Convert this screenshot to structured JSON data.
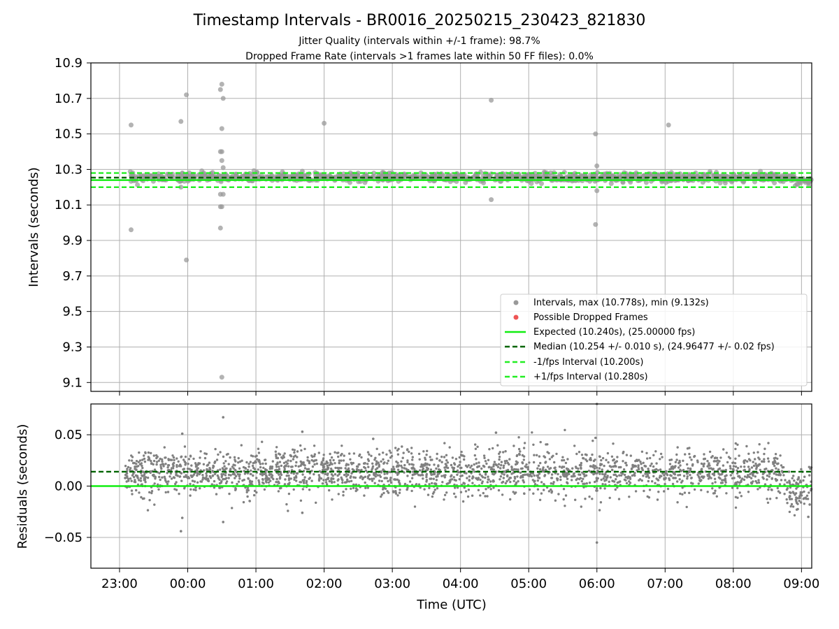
{
  "chart_data": [
    {
      "type": "scatter",
      "title": "Timestamp Intervals - BR0016_20250215_230423_821830",
      "subtitle_lines": [
        "Jitter Quality (intervals within +/-1 frame): 98.7%",
        "Dropped Frame Rate (intervals >1 frames late within 50 FF files): 0.0%"
      ],
      "xlabel": "",
      "ylabel": "Intervals (seconds)",
      "xlim_hours": [
        -0.42,
        10.15
      ],
      "ylim": [
        9.05,
        10.9
      ],
      "yticks": [
        9.1,
        9.3,
        9.5,
        9.7,
        9.9,
        10.1,
        10.3,
        10.5,
        10.7,
        10.9
      ],
      "ytick_labels": [
        "9.1",
        "9.3",
        "9.5",
        "9.7",
        "9.9",
        "10.1",
        "10.3",
        "10.5",
        "10.7",
        "10.9"
      ],
      "grid": true,
      "legend_position": "lower right",
      "legend": [
        "Intervals, max (10.778s), min (9.132s)",
        "Possible Dropped Frames",
        "Expected (10.240s), (25.00000 fps)",
        "Median (10.254 +/- 0.010 s), (24.96477 +/- 0.02 fps)",
        "-1/fps Interval (10.200s)",
        "+1/fps Interval (10.280s)"
      ],
      "lines": {
        "expected": 10.24,
        "median": 10.254,
        "minus_1_fps": 10.2,
        "plus_1_fps": 10.28
      },
      "series": [
        {
          "name": "Intervals, max (10.778s), min (9.132s)",
          "band": {
            "x_start": 0.15,
            "x_end": 10.15,
            "center": 10.255,
            "spread": 0.012,
            "count": 1200
          },
          "outliers": [
            [
              0.17,
              10.55
            ],
            [
              0.17,
              9.96
            ],
            [
              0.9,
              10.57
            ],
            [
              0.9,
              10.2
            ],
            [
              0.92,
              10.28
            ],
            [
              0.98,
              10.72
            ],
            [
              0.98,
              9.79
            ],
            [
              1.48,
              10.75
            ],
            [
              1.5,
              10.78
            ],
            [
              1.52,
              10.7
            ],
            [
              1.5,
              10.53
            ],
            [
              1.48,
              10.4
            ],
            [
              1.5,
              10.4
            ],
            [
              1.5,
              10.35
            ],
            [
              1.52,
              10.31
            ],
            [
              1.48,
              10.16
            ],
            [
              1.52,
              10.16
            ],
            [
              1.48,
              10.09
            ],
            [
              1.5,
              10.09
            ],
            [
              1.48,
              9.97
            ],
            [
              1.5,
              9.13
            ],
            [
              3.0,
              10.56
            ],
            [
              5.45,
              10.69
            ],
            [
              5.45,
              10.13
            ],
            [
              6.98,
              10.5
            ],
            [
              7.0,
              10.32
            ],
            [
              7.0,
              10.18
            ],
            [
              6.98,
              9.99
            ],
            [
              8.05,
              10.55
            ],
            [
              2.68,
              10.29
            ]
          ]
        },
        {
          "name": "Possible Dropped Frames",
          "points": []
        }
      ]
    },
    {
      "type": "scatter",
      "xlabel": "Time (UTC)",
      "ylabel": "Residuals (seconds)",
      "xlim_hours": [
        -0.42,
        10.15
      ],
      "ylim": [
        -0.08,
        0.08
      ],
      "yticks": [
        -0.05,
        0.0,
        0.05
      ],
      "ytick_labels": [
        "−0.05",
        "0.00",
        "0.05"
      ],
      "xticks_hours": [
        0,
        1,
        2,
        3,
        4,
        5,
        6,
        7,
        8,
        9,
        10
      ],
      "xtick_labels": [
        "23:00",
        "00:00",
        "01:00",
        "02:00",
        "03:00",
        "04:00",
        "05:00",
        "06:00",
        "07:00",
        "08:00",
        "09:00"
      ],
      "grid": true,
      "lines": {
        "zero": 0.0,
        "median_offset": 0.014
      },
      "series": [
        {
          "name": "",
          "band": {
            "x_start": 0.08,
            "x_end": 10.15,
            "center": 0.013,
            "spread": 0.011,
            "count": 2400
          },
          "outliers": [
            [
              0.92,
              0.051
            ],
            [
              0.92,
              -0.031
            ],
            [
              0.9,
              -0.044
            ],
            [
              1.52,
              0.067
            ],
            [
              1.52,
              -0.035
            ],
            [
              3.72,
              0.046
            ],
            [
              2.68,
              0.053
            ],
            [
              2.68,
              -0.026
            ],
            [
              5.52,
              0.052
            ],
            [
              6.98,
              0.047
            ],
            [
              7.0,
              -0.055
            ],
            [
              7.0,
              0.08
            ],
            [
              10.1,
              -0.03
            ],
            [
              10.12,
              -0.018
            ]
          ]
        }
      ]
    }
  ],
  "colors": {
    "points": "#808080",
    "points_top": "#999999",
    "dropped": "#ee5555",
    "expected": "#11ee11",
    "median": "#006400",
    "fps_interval": "#22ee22",
    "grid": "#b0b0b0"
  }
}
